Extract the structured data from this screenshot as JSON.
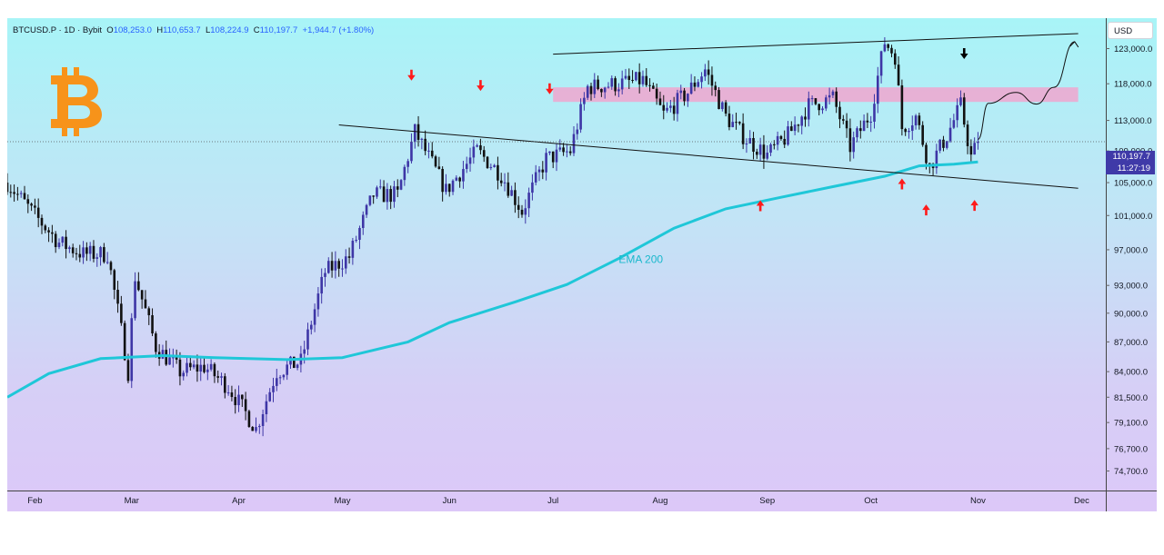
{
  "legend": {
    "symbol": "BTCUSD.P · 1D · Bybit",
    "o_label": "O",
    "open": "108,253.0",
    "h_label": "H",
    "high": "110,653.7",
    "l_label": "L",
    "low": "108,224.9",
    "c_label": "C",
    "close": "110,197.7",
    "change": "+1,944.7 (+1.80%)"
  },
  "currency_button": "USD",
  "last_price": {
    "price": "110,197.7",
    "countdown": "11:27:19"
  },
  "colors": {
    "up": "#3e36a6",
    "down": "#111111",
    "ema": "#1fc7d8",
    "zone": "#f0a6cf",
    "logo": "#f7931a",
    "marker_red": "#ff1a1a",
    "marker_black": "#000000"
  },
  "logo_icon": "bitcoin-logo-icon",
  "chart_data": {
    "type": "candlestick",
    "x_tick_labels": [
      "Feb",
      "Mar",
      "Apr",
      "May",
      "Jun",
      "Jul",
      "Aug",
      "Sep",
      "Oct",
      "Nov",
      "Dec"
    ],
    "y_tick_labels": [
      "123,000.0",
      "118,000.0",
      "113,000.0",
      "109,000.0",
      "105,000.0",
      "101,000.0",
      "97,000.0",
      "93,000.0",
      "90,000.0",
      "87,000.0",
      "84,000.0",
      "81,500.0",
      "79,100.0",
      "76,700.0",
      "74,700.0"
    ],
    "y_ticks": [
      123000,
      118000,
      113000,
      109000,
      105000,
      101000,
      97000,
      93000,
      90000,
      87000,
      84000,
      81500,
      79100,
      76700,
      74700
    ],
    "x_range": [
      "2025-01-24",
      "2025-12-08"
    ],
    "y_scale": "log",
    "y_range": [
      73000,
      127500
    ],
    "last_close": 110197.7,
    "indicator": {
      "name": "EMA 200",
      "label": "EMA 200",
      "points": [
        [
          "2025-01-24",
          81500
        ],
        [
          "2025-02-05",
          83800
        ],
        [
          "2025-02-20",
          85300
        ],
        [
          "2025-03-10",
          85600
        ],
        [
          "2025-03-25",
          85400
        ],
        [
          "2025-04-15",
          85200
        ],
        [
          "2025-05-01",
          85400
        ],
        [
          "2025-05-20",
          87000
        ],
        [
          "2025-06-01",
          89000
        ],
        [
          "2025-06-20",
          91200
        ],
        [
          "2025-07-05",
          93100
        ],
        [
          "2025-07-20",
          96000
        ],
        [
          "2025-08-05",
          99500
        ],
        [
          "2025-08-20",
          101800
        ],
        [
          "2025-09-05",
          103200
        ],
        [
          "2025-09-20",
          104500
        ],
        [
          "2025-10-05",
          105800
        ],
        [
          "2025-10-15",
          107100
        ],
        [
          "2025-10-25",
          107300
        ],
        [
          "2025-11-01",
          107600
        ]
      ]
    },
    "resistance_zone": {
      "start": "2025-07-01",
      "end": "2025-11-30",
      "low": 115500,
      "high": 117500
    },
    "trendlines": [
      {
        "name": "upper-channel-line",
        "start": [
          "2025-07-01",
          122200
        ],
        "end": [
          "2025-11-30",
          125200
        ]
      },
      {
        "name": "lower-channel-line",
        "start": [
          "2025-04-30",
          112400
        ],
        "end": [
          "2025-11-30",
          104300
        ]
      }
    ],
    "projection_path": [
      [
        "2025-11-01",
        110500
      ],
      [
        "2025-11-04",
        115300
      ],
      [
        "2025-11-12",
        116800
      ],
      [
        "2025-11-18",
        115200
      ],
      [
        "2025-11-23",
        117500
      ],
      [
        "2025-11-29",
        124000
      ]
    ],
    "markers": [
      {
        "date": "2025-05-21",
        "kind": "down",
        "color": "red"
      },
      {
        "date": "2025-06-10",
        "kind": "down",
        "color": "red"
      },
      {
        "date": "2025-06-30",
        "kind": "down",
        "color": "red"
      },
      {
        "date": "2025-08-30",
        "kind": "up",
        "color": "red"
      },
      {
        "date": "2025-10-10",
        "kind": "up",
        "color": "red"
      },
      {
        "date": "2025-10-17",
        "kind": "up",
        "color": "red"
      },
      {
        "date": "2025-10-31",
        "kind": "up",
        "color": "red"
      },
      {
        "date": "2025-10-28",
        "kind": "down",
        "color": "black"
      }
    ],
    "closes": [
      [
        "2025-01-24",
        105000
      ],
      [
        "2025-02-01",
        101000
      ],
      [
        "2025-02-08",
        97800
      ],
      [
        "2025-02-15",
        96500
      ],
      [
        "2025-02-22",
        96500
      ],
      [
        "2025-02-28",
        84000
      ],
      [
        "2025-03-02",
        94000
      ],
      [
        "2025-03-08",
        86500
      ],
      [
        "2025-03-15",
        84000
      ],
      [
        "2025-03-22",
        84500
      ],
      [
        "2025-03-29",
        82500
      ],
      [
        "2025-04-06",
        78500
      ],
      [
        "2025-04-12",
        84000
      ],
      [
        "2025-04-19",
        85000
      ],
      [
        "2025-04-26",
        94500
      ],
      [
        "2025-05-03",
        96200
      ],
      [
        "2025-05-10",
        103500
      ],
      [
        "2025-05-17",
        103500
      ],
      [
        "2025-05-22",
        111500
      ],
      [
        "2025-05-31",
        104000
      ],
      [
        "2025-06-09",
        109000
      ],
      [
        "2025-06-16",
        106000
      ],
      [
        "2025-06-22",
        101500
      ],
      [
        "2025-06-29",
        108000
      ],
      [
        "2025-07-06",
        109000
      ],
      [
        "2025-07-11",
        117500
      ],
      [
        "2025-07-20",
        118000
      ],
      [
        "2025-07-27",
        118500
      ],
      [
        "2025-08-02",
        113800
      ],
      [
        "2025-08-09",
        116800
      ],
      [
        "2025-08-14",
        120000
      ],
      [
        "2025-08-20",
        113500
      ],
      [
        "2025-08-26",
        110500
      ],
      [
        "2025-09-01",
        108500
      ],
      [
        "2025-09-07",
        111000
      ],
      [
        "2025-09-13",
        115000
      ],
      [
        "2025-09-20",
        116000
      ],
      [
        "2025-09-25",
        109500
      ],
      [
        "2025-10-01",
        114000
      ],
      [
        "2025-10-05",
        124000
      ],
      [
        "2025-10-08",
        122000
      ],
      [
        "2025-10-10",
        112000
      ],
      [
        "2025-10-14",
        113500
      ],
      [
        "2025-10-18",
        107000
      ],
      [
        "2025-10-23",
        111000
      ],
      [
        "2025-10-27",
        115000
      ],
      [
        "2025-10-30",
        108200
      ],
      [
        "2025-11-01",
        110197.7
      ]
    ]
  }
}
